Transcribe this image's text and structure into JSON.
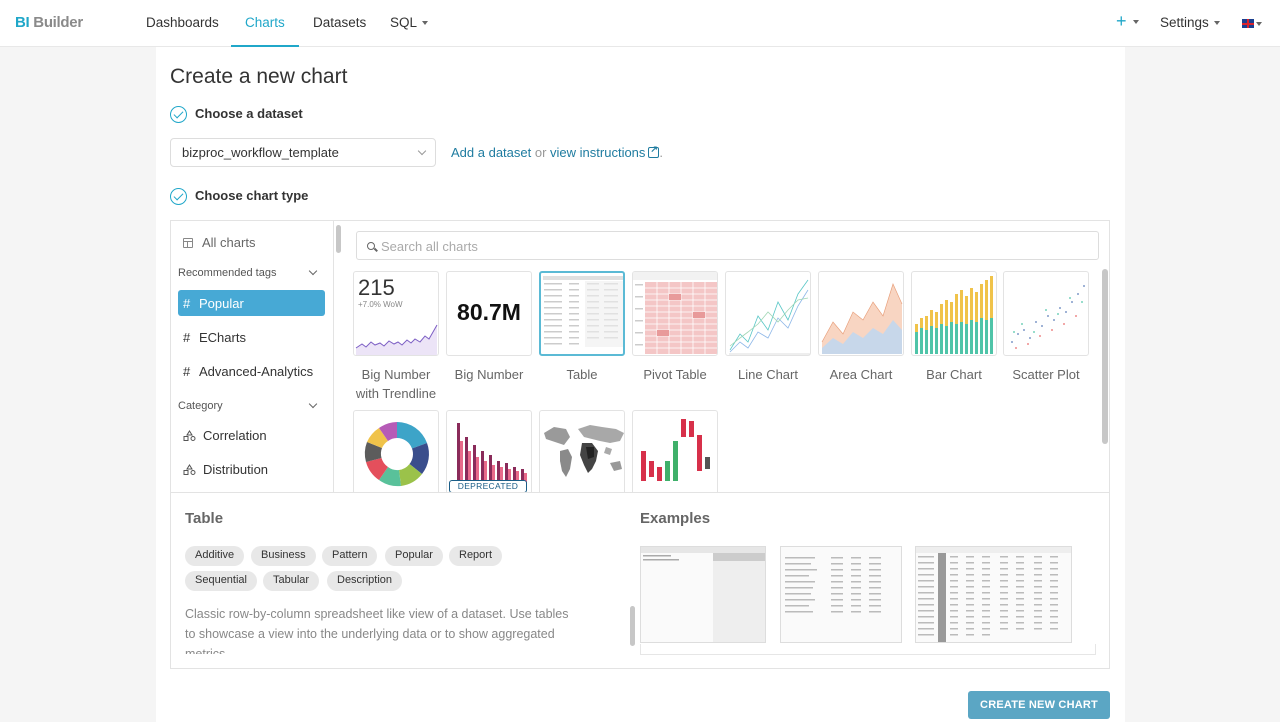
{
  "brand": {
    "prefix": "BI",
    "name": "Builder"
  },
  "nav": {
    "items": [
      {
        "label": "Dashboards",
        "active": false
      },
      {
        "label": "Charts",
        "active": true
      },
      {
        "label": "Datasets",
        "active": false
      },
      {
        "label": "SQL",
        "active": false,
        "dropdown": true
      }
    ],
    "right": {
      "plus": "+",
      "settings": "Settings",
      "language_icon": "uk-flag-icon"
    }
  },
  "page": {
    "title": "Create a new chart",
    "step1": "Choose a dataset",
    "step2": "Choose chart type",
    "dataset": {
      "selected": "bizproc_workflow_template",
      "add_link": "Add a dataset",
      "or": "or",
      "instructions_link": "view instructions",
      "trailing": "."
    }
  },
  "sidebar": {
    "all_charts": "All charts",
    "recommended_header": "Recommended tags",
    "recommended": [
      {
        "label": "Popular",
        "active": true
      },
      {
        "label": "ECharts",
        "active": false
      },
      {
        "label": "Advanced-Analytics",
        "active": false
      }
    ],
    "category_header": "Category",
    "categories": [
      {
        "label": "Correlation"
      },
      {
        "label": "Distribution"
      }
    ]
  },
  "search": {
    "placeholder": "Search all charts"
  },
  "charts": [
    {
      "label": "Big Number with Trendline",
      "big_number": "215",
      "wow": "+7.0% WoW",
      "selected": false
    },
    {
      "label": "Big Number",
      "big_number": "80.7M",
      "selected": false
    },
    {
      "label": "Table",
      "selected": true
    },
    {
      "label": "Pivot Table",
      "selected": false
    },
    {
      "label": "Line Chart",
      "selected": false
    },
    {
      "label": "Area Chart",
      "selected": false
    },
    {
      "label": "Bar Chart",
      "selected": false
    },
    {
      "label": "Scatter Plot",
      "selected": false
    },
    {
      "label": "",
      "selected": false
    },
    {
      "label": "",
      "badge": "DEPRECATED",
      "selected": false
    },
    {
      "label": "",
      "selected": false
    },
    {
      "label": "",
      "selected": false
    }
  ],
  "details": {
    "title": "Table",
    "tags": [
      "Additive",
      "Business",
      "Pattern",
      "Popular",
      "Report",
      "Sequential",
      "Tabular",
      "Description"
    ],
    "description": "Classic row-by-column spreadsheet like view of a dataset. Use tables to showcase a view into the underlying data or to show aggregated metrics.",
    "examples_title": "Examples"
  },
  "create_button": "CREATE NEW CHART",
  "colors": {
    "accent": "#20a7c9",
    "active_tag": "#47a9d5",
    "button": "#5ba6c4"
  }
}
